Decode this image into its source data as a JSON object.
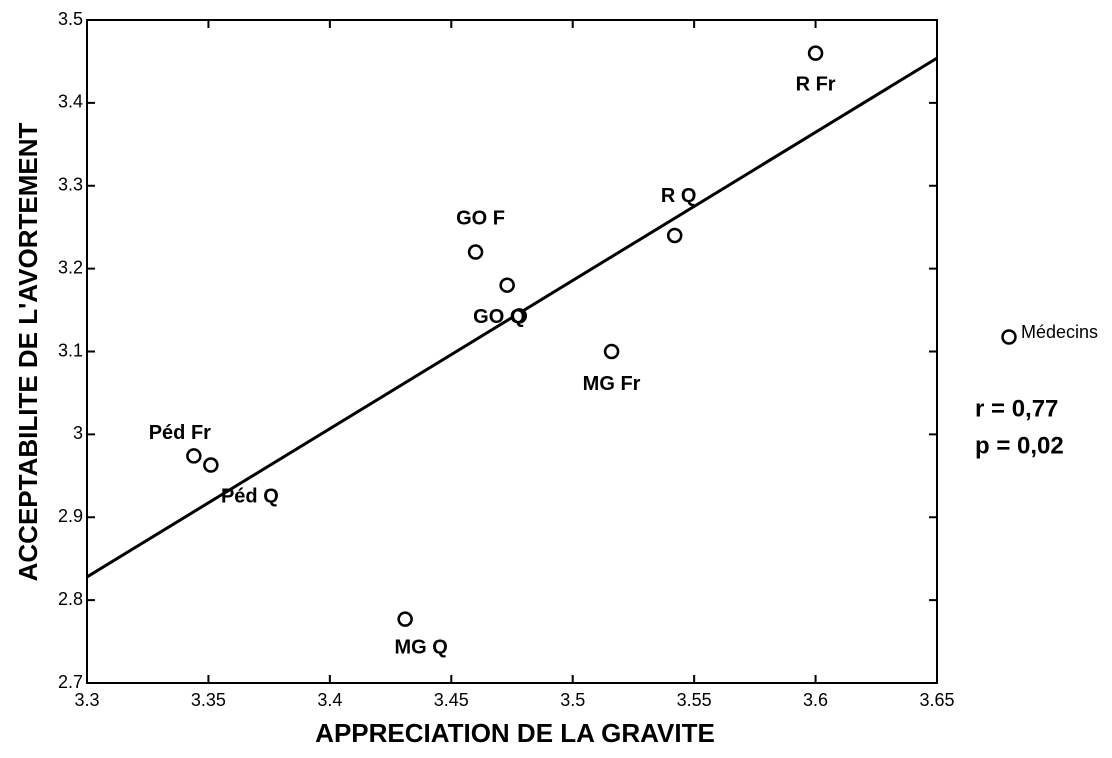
{
  "chart_data": {
    "type": "scatter",
    "xlabel": "APPRECIATION DE LA GRAVITE",
    "ylabel": "ACCEPTABILITE DE L'AVORTEMENT",
    "series": [
      {
        "name": "Médecins",
        "color": "#000000",
        "x": [
          3.6,
          3.542,
          3.46,
          3.473,
          3.478,
          3.516,
          3.344,
          3.351,
          3.431
        ],
        "values": [
          3.46,
          3.24,
          3.22,
          3.18,
          3.143,
          3.1,
          2.974,
          2.963,
          2.777
        ],
        "labels": [
          "R Fr",
          "R Q",
          "GO F",
          null,
          "GO Q",
          "MG Fr",
          "Péd Fr",
          "Péd Q",
          "MG Q"
        ]
      }
    ],
    "trendline": {
      "x": [
        3.3,
        3.65
      ],
      "values": [
        2.828,
        3.454
      ]
    },
    "annotations": [
      "r = 0,77",
      "p = 0,02"
    ],
    "xlim": [
      3.3,
      3.65
    ],
    "xticks": [
      3.3,
      3.35,
      3.4,
      3.45,
      3.5,
      3.55,
      3.6,
      3.65
    ],
    "ylim": [
      2.7,
      3.5
    ],
    "yticks": [
      2.7,
      2.8,
      2.9,
      3,
      3.1,
      3.2,
      3.3,
      3.4,
      3.5
    ],
    "grid": false,
    "legend": "right"
  }
}
